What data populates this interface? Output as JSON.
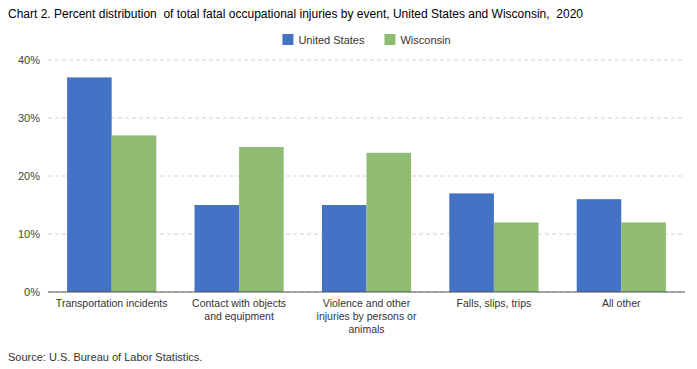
{
  "chart_data": {
    "type": "bar",
    "title": "Chart 2. Percent distribution  of total fatal occupational injuries by event, United States and Wisconsin,  2020",
    "source": "Source: U.S. Bureau of Labor Statistics.",
    "categories": [
      "Transportation incidents",
      "Contact with objects\nand equipment",
      "Violence and other\ninjuries by persons or\nanimals",
      "Falls, slips, trips",
      "All other"
    ],
    "series": [
      {
        "name": "United States",
        "color": "#4472C4",
        "values": [
          37,
          15,
          15,
          17,
          16
        ]
      },
      {
        "name": "Wisconsin",
        "color": "#8FBC72",
        "values": [
          27,
          25,
          24,
          12,
          12
        ]
      }
    ],
    "ylim": [
      0,
      40
    ],
    "yticks": [
      {
        "value": 0,
        "label": "0%"
      },
      {
        "value": 10,
        "label": "10%"
      },
      {
        "value": 20,
        "label": "20%"
      },
      {
        "value": 30,
        "label": "30%"
      },
      {
        "value": 40,
        "label": "40%"
      }
    ],
    "grid": true,
    "legend": "top"
  }
}
